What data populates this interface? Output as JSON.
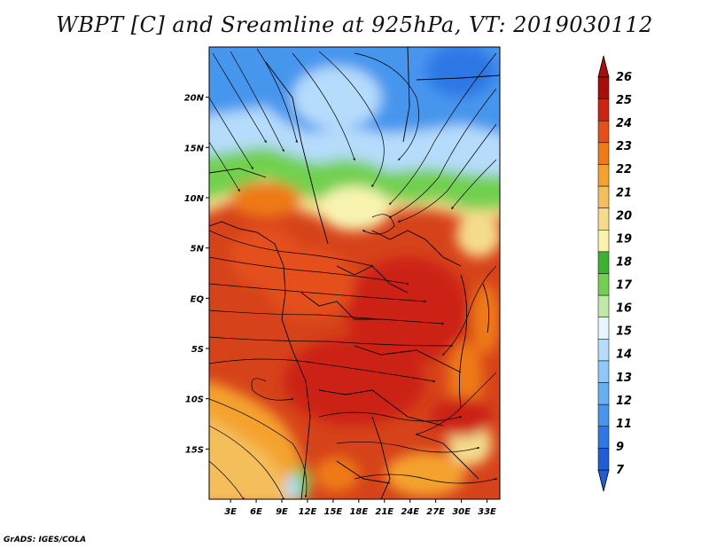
{
  "title": "WBPT [C] and Sreamline at 925hPa, VT: 2019030112",
  "footer": "GrADS: IGES/COLA",
  "lat_labels": [
    "20N",
    "15N",
    "10N",
    "5N",
    "EQ",
    "5S",
    "10S",
    "15S"
  ],
  "lat_values": [
    20,
    15,
    10,
    5,
    0,
    -5,
    -10,
    -15
  ],
  "lon_labels": [
    "3E",
    "6E",
    "9E",
    "12E",
    "15E",
    "18E",
    "21E",
    "24E",
    "27E",
    "30E",
    "33E"
  ],
  "lon_values": [
    3,
    6,
    9,
    12,
    15,
    18,
    21,
    24,
    27,
    30,
    33
  ],
  "map": {
    "lon_range": [
      0.5,
      34.5
    ],
    "lat_range": [
      -20,
      25
    ]
  },
  "colorbar": {
    "labels": [
      "7",
      "9",
      "11",
      "12",
      "13",
      "14",
      "15",
      "16",
      "17",
      "18",
      "19",
      "20",
      "21",
      "22",
      "23",
      "24",
      "25",
      "26"
    ],
    "colors": [
      "#1f5fd6",
      "#2e78e6",
      "#4696ee",
      "#66b0f4",
      "#8ec8f8",
      "#b6dcfb",
      "#e6f6ff",
      "#bdeaa8",
      "#72d050",
      "#3cb432",
      "#f8f4b0",
      "#f5dc8c",
      "#f4be5a",
      "#f4a22e",
      "#ee7a18",
      "#e4501a",
      "#cc2414",
      "#a80e0a"
    ],
    "top_color": "#a80e0a",
    "bottom_color": "#1f5fd6"
  }
}
